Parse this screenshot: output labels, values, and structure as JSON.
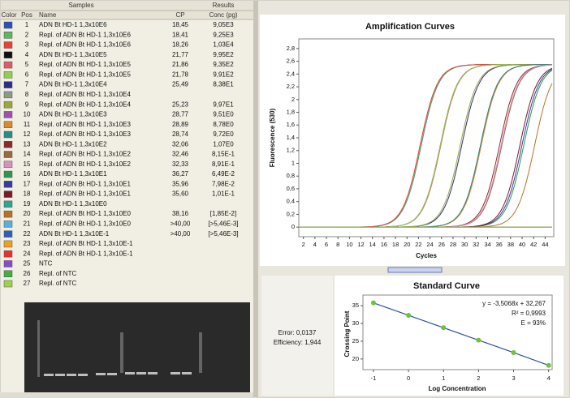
{
  "table": {
    "group_headers": [
      "Samples",
      "Results"
    ],
    "columns": [
      "Color",
      "Pos",
      "Name",
      "CP",
      "Conc (pg)"
    ],
    "rows": [
      {
        "color": "#2b4fbf",
        "pos": 1,
        "name": "ADN Bt HD-1 1,3x10E6",
        "cp": "18,45",
        "conc": "9,05E3"
      },
      {
        "color": "#5cb85c",
        "pos": 2,
        "name": "Repl. of ADN Bt HD-1 1,3x10E6",
        "cp": "18,41",
        "conc": "9,25E3"
      },
      {
        "color": "#e8403a",
        "pos": 3,
        "name": "Repl. of ADN Bt HD-1 1,3x10E6",
        "cp": "18,26",
        "conc": "1,03E4"
      },
      {
        "color": "#111111",
        "pos": 4,
        "name": "ADN Bt HD-1 1,3x10E5",
        "cp": "21,77",
        "conc": "9,95E2"
      },
      {
        "color": "#e05a6a",
        "pos": 5,
        "name": "Repl. of ADN Bt HD-1 1,3x10E5",
        "cp": "21,86",
        "conc": "9,35E2"
      },
      {
        "color": "#8fd14f",
        "pos": 6,
        "name": "Repl. of ADN Bt HD-1 1,3x10E5",
        "cp": "21,78",
        "conc": "9,91E2"
      },
      {
        "color": "#2a2f8a",
        "pos": 7,
        "name": "ADN Bt HD-1 1,3x10E4",
        "cp": "25,49",
        "conc": "8,38E1"
      },
      {
        "color": "#8a9a8a",
        "pos": 8,
        "name": "Repl. of ADN Bt HD-1 1,3x10E4"
      },
      {
        "color": "#9aa83a",
        "pos": 9,
        "name": "Repl. of ADN Bt HD-1 1,3x10E4",
        "cp": "25,23",
        "conc": "9,97E1"
      },
      {
        "color": "#a050b0",
        "pos": 10,
        "name": "ADN Bt HD-1 1,3x10E3",
        "cp": "28,77",
        "conc": "9,51E0"
      },
      {
        "color": "#d98a2a",
        "pos": 11,
        "name": "Repl. of ADN Bt HD-1 1,3x10E3",
        "cp": "28,89",
        "conc": "8,78E0"
      },
      {
        "color": "#2a8a8a",
        "pos": 12,
        "name": "Repl. of ADN Bt HD-1 1,3x10E3",
        "cp": "28,74",
        "conc": "9,72E0"
      },
      {
        "color": "#8a2a2a",
        "pos": 13,
        "name": "ADN Bt HD-1 1,3x10E2",
        "cp": "32,06",
        "conc": "1,07E0"
      },
      {
        "color": "#9a6a3a",
        "pos": 14,
        "name": "Repl. of ADN Bt HD-1 1,3x10E2",
        "cp": "32,46",
        "conc": "8,15E-1"
      },
      {
        "color": "#d890c0",
        "pos": 15,
        "name": "Repl. of ADN Bt HD-1 1,3x10E2",
        "cp": "32,33",
        "conc": "8,91E-1"
      },
      {
        "color": "#2a9a4a",
        "pos": 16,
        "name": "ADN Bt HD-1 1,3x10E1",
        "cp": "36,27",
        "conc": "6,49E-2"
      },
      {
        "color": "#3a3aa0",
        "pos": 17,
        "name": "Repl. of ADN Bt HD-1 1,3x10E1",
        "cp": "35,96",
        "conc": "7,98E-2"
      },
      {
        "color": "#7a1a2a",
        "pos": 18,
        "name": "Repl. of ADN Bt HD-1 1,3x10E1",
        "cp": "35,60",
        "conc": "1,01E-1"
      },
      {
        "color": "#2aa890",
        "pos": 19,
        "name": "ADN Bt HD-1 1,3x10E0"
      },
      {
        "color": "#b8702a",
        "pos": 20,
        "name": "Repl. of ADN Bt HD-1 1,3x10E0",
        "cp": "38,16",
        "conc": "[1,85E-2]"
      },
      {
        "color": "#5ab0d8",
        "pos": 21,
        "name": "Repl. of ADN Bt HD-1 1,3x10E0",
        "cp": ">40,00",
        "conc": "[>5,46E-3]"
      },
      {
        "color": "#2a60c0",
        "pos": 22,
        "name": "ADN Bt HD-1 1,3x10E-1",
        "cp": ">40,00",
        "conc": "[>5,46E-3]"
      },
      {
        "color": "#f0a020",
        "pos": 23,
        "name": "Repl. of ADN Bt HD-1 1,3x10E-1"
      },
      {
        "color": "#e83030",
        "pos": 24,
        "name": "Repl. of ADN Bt HD-1 1,3x10E-1"
      },
      {
        "color": "#8a4ad0",
        "pos": 25,
        "name": "NTC"
      },
      {
        "color": "#40b040",
        "pos": 26,
        "name": "Repl. of NTC"
      },
      {
        "color": "#a0d050",
        "pos": 27,
        "name": "Repl. of NTC"
      }
    ]
  },
  "analysis": {
    "error": "Error: 0,0137",
    "efficiency": "Efficiency: 1,944"
  },
  "chart_data": [
    {
      "type": "line",
      "title": "Amplification Curves",
      "x_label": "Cycles",
      "y_label": "Fluorescence (530)",
      "xlim": [
        1.2,
        45.5
      ],
      "ylim": [
        -0.15,
        2.95
      ],
      "xticks": [
        2,
        4,
        6,
        8,
        10,
        12,
        14,
        16,
        18,
        20,
        22,
        24,
        26,
        28,
        30,
        32,
        34,
        36,
        38,
        40,
        42,
        44
      ],
      "yticks": [
        0,
        {
          "value": 0.2,
          "label": "0,2"
        },
        {
          "value": 0.4,
          "label": "0,4"
        },
        {
          "value": 0.6,
          "label": "0,6"
        },
        {
          "value": 0.8,
          "label": "0,8"
        },
        1,
        {
          "value": 1.2,
          "label": "1,2"
        },
        {
          "value": 1.4,
          "label": "1,4"
        },
        {
          "value": 1.6,
          "label": "1,6"
        },
        {
          "value": 1.8,
          "label": "1,8"
        },
        2,
        {
          "value": 2.2,
          "label": "2,2"
        },
        {
          "value": 2.4,
          "label": "2,4"
        },
        {
          "value": 2.6,
          "label": "2,6"
        },
        {
          "value": 2.8,
          "label": "2,8"
        }
      ]
    },
    {
      "type": "scatter",
      "title": "Standard Curve",
      "x_label": "Log Concentration",
      "y_label": "Crossing Point",
      "annotations": [
        "y = -3,5068x + 32,267",
        "R² = 0,9993",
        "E = 93%"
      ],
      "color": "#6fc23a",
      "line_color": "#2a4fa8",
      "x": [
        -1,
        0,
        1,
        2,
        3,
        4
      ],
      "values": [
        35.8,
        32.3,
        28.8,
        25.3,
        21.8,
        18.2
      ],
      "xlim": [
        -1.3,
        4.1
      ],
      "ylim": [
        17,
        38
      ],
      "xticks": [
        -1,
        0,
        1,
        2,
        3,
        4
      ],
      "yticks": [
        20,
        25,
        30,
        35
      ]
    }
  ]
}
